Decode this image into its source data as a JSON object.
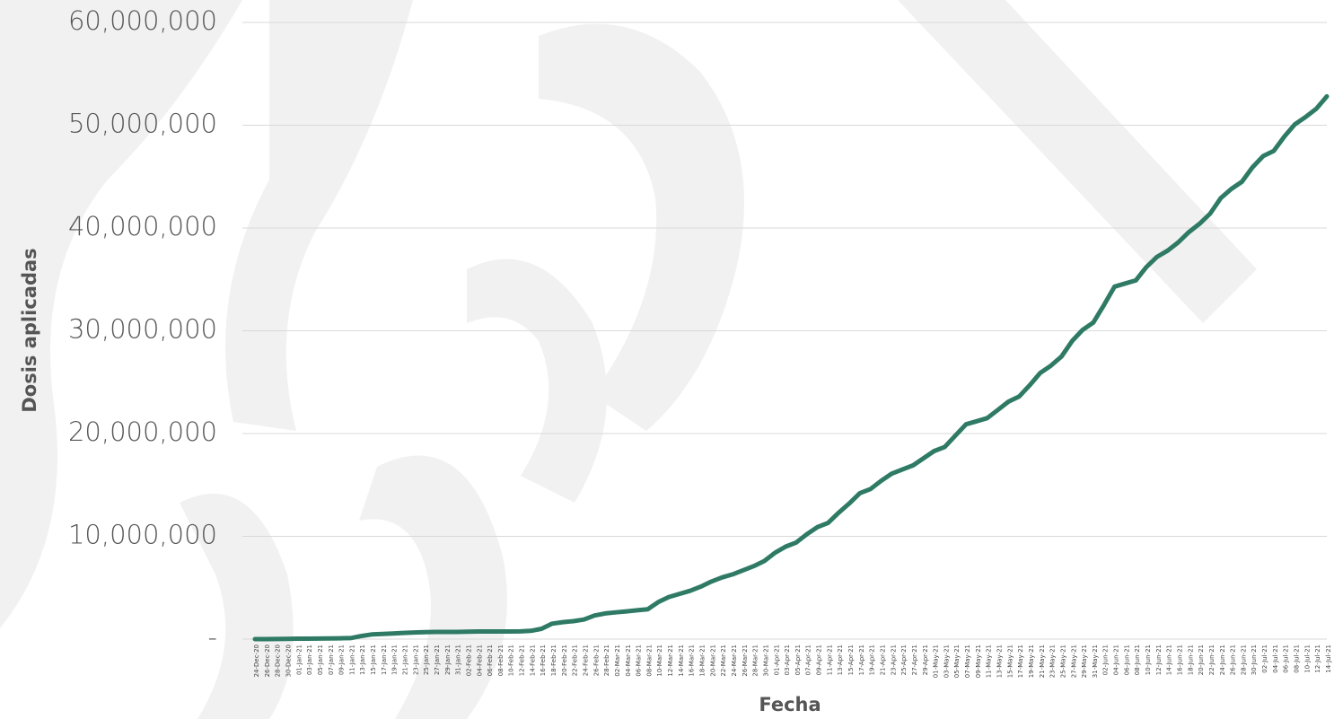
{
  "chart_data": {
    "type": "line",
    "y_label": "Dosis aplicadas",
    "x_label": "Fecha",
    "categories": [
      "24-Dec-20",
      "26-Dec-20",
      "28-Dec-20",
      "30-Dec-20",
      "01-Jan-21",
      "03-Jan-21",
      "05-Jan-21",
      "07-Jan-21",
      "09-Jan-21",
      "11-Jan-21",
      "13-Jan-21",
      "15-Jan-21",
      "17-Jan-21",
      "19-Jan-21",
      "21-Jan-21",
      "23-Jan-21",
      "25-Jan-21",
      "27-Jan-21",
      "29-Jan-21",
      "31-Jan-21",
      "02-Feb-21",
      "04-Feb-21",
      "06-Feb-21",
      "08-Feb-21",
      "10-Feb-21",
      "12-Feb-21",
      "14-Feb-21",
      "16-Feb-21",
      "18-Feb-21",
      "20-Feb-21",
      "22-Feb-21",
      "24-Feb-21",
      "26-Feb-21",
      "28-Feb-21",
      "02-Mar-21",
      "04-Mar-21",
      "06-Mar-21",
      "08-Mar-21",
      "10-Mar-21",
      "12-Mar-21",
      "14-Mar-21",
      "16-Mar-21",
      "18-Mar-21",
      "20-Mar-21",
      "22-Mar-21",
      "24-Mar-21",
      "26-Mar-21",
      "28-Mar-21",
      "30-Mar-21",
      "01-Apr-21",
      "03-Apr-21",
      "05-Apr-21",
      "07-Apr-21",
      "09-Apr-21",
      "11-Apr-21",
      "13-Apr-21",
      "15-Apr-21",
      "17-Apr-21",
      "19-Apr-21",
      "21-Apr-21",
      "23-Apr-21",
      "25-Apr-21",
      "27-Apr-21",
      "29-Apr-21",
      "01-May-21",
      "03-May-21",
      "05-May-21",
      "07-May-21",
      "09-May-21",
      "11-May-21",
      "13-May-21",
      "15-May-21",
      "17-May-21",
      "19-May-21",
      "21-May-21",
      "23-May-21",
      "25-May-21",
      "27-May-21",
      "29-May-21",
      "31-May-21",
      "02-Jun-21",
      "04-Jun-21",
      "06-Jun-21",
      "08-Jun-21",
      "10-Jun-21",
      "12-Jun-21",
      "14-Jun-21",
      "16-Jun-21",
      "18-Jun-21",
      "20-Jun-21",
      "22-Jun-21",
      "24-Jun-21",
      "26-Jun-21",
      "28-Jun-21",
      "30-Jun-21",
      "02-Jul-21",
      "04-Jul-21",
      "06-Jul-21",
      "08-Jul-21",
      "10-Jul-21",
      "12-Jul-21",
      "14-Jul-21"
    ],
    "values": [
      0,
      3000,
      10000,
      20000,
      40000,
      45000,
      50000,
      60000,
      80000,
      100000,
      300000,
      450000,
      500000,
      550000,
      600000,
      650000,
      680000,
      700000,
      700000,
      700000,
      720000,
      740000,
      740000,
      740000,
      740000,
      750000,
      800000,
      1000000,
      1500000,
      1650000,
      1750000,
      1900000,
      2300000,
      2500000,
      2600000,
      2700000,
      2800000,
      2900000,
      3600000,
      4100000,
      4400000,
      4700000,
      5100000,
      5600000,
      6000000,
      6300000,
      6700000,
      7100000,
      7600000,
      8400000,
      9000000,
      9400000,
      10200000,
      10900000,
      11300000,
      12300000,
      13200000,
      14200000,
      14600000,
      15400000,
      16100000,
      16500000,
      16900000,
      17600000,
      18300000,
      18700000,
      19800000,
      20900000,
      21200000,
      21500000,
      22300000,
      23100000,
      23600000,
      24700000,
      25900000,
      26600000,
      27500000,
      29000000,
      30100000,
      30800000,
      32500000,
      34300000,
      34600000,
      34900000,
      36200000,
      37200000,
      37800000,
      38600000,
      39600000,
      40400000,
      41400000,
      42900000,
      43800000,
      44500000,
      45900000,
      47000000,
      47500000,
      48900000,
      50100000,
      50800000,
      51600000,
      52800000
    ],
    "color": "#2e7a65",
    "ylim": [
      0,
      60000000
    ],
    "yticks": [
      {
        "value": 0,
        "label": "-"
      },
      {
        "value": 10000000,
        "label": "10,000,000"
      },
      {
        "value": 20000000,
        "label": "20,000,000"
      },
      {
        "value": 30000000,
        "label": "30,000,000"
      },
      {
        "value": 40000000,
        "label": "40,000,000"
      },
      {
        "value": 50000000,
        "label": "50,000,000"
      },
      {
        "value": 60000000,
        "label": "60,000,000"
      }
    ],
    "grid": true
  }
}
